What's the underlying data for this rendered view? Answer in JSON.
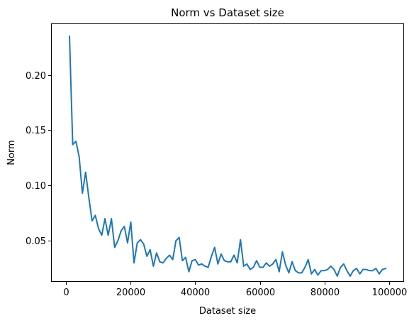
{
  "chart_data": {
    "type": "line",
    "title": "Norm vs Dataset size",
    "xlabel": "Dataset size",
    "ylabel": "Norm",
    "xlim": [
      -4500,
      104500
    ],
    "ylim": [
      0.0135,
      0.246
    ],
    "grid": false,
    "x_ticks": [
      0,
      20000,
      40000,
      60000,
      80000,
      100000
    ],
    "x_tick_labels": [
      "0",
      "20000",
      "40000",
      "60000",
      "80000",
      "100000"
    ],
    "y_ticks": [
      0.05,
      0.1,
      0.15,
      0.2
    ],
    "y_tick_labels": [
      "0.05",
      "0.10",
      "0.15",
      "0.20"
    ],
    "series": [
      {
        "color": "#1f77b4",
        "x": [
          1000,
          2000,
          3000,
          4000,
          5000,
          6000,
          7000,
          8000,
          9000,
          10000,
          11000,
          12000,
          13000,
          14000,
          15000,
          16000,
          17000,
          18000,
          19000,
          20000,
          21000,
          22000,
          23000,
          24000,
          25000,
          26000,
          27000,
          28000,
          29000,
          30000,
          31000,
          32000,
          33000,
          34000,
          35000,
          36000,
          37000,
          38000,
          39000,
          40000,
          41000,
          42000,
          43000,
          44000,
          45000,
          46000,
          47000,
          48000,
          49000,
          50000,
          51000,
          52000,
          53000,
          54000,
          55000,
          56000,
          57000,
          58000,
          59000,
          60000,
          61000,
          62000,
          63000,
          64000,
          65000,
          66000,
          67000,
          68000,
          69000,
          70000,
          71000,
          72000,
          73000,
          74000,
          75000,
          76000,
          77000,
          78000,
          79000,
          80000,
          81000,
          82000,
          83000,
          84000,
          85000,
          86000,
          87000,
          88000,
          89000,
          90000,
          91000,
          92000,
          93000,
          94000,
          95000,
          96000,
          97000,
          98000,
          99000
        ],
        "y": [
          0.235,
          0.137,
          0.14,
          0.126,
          0.093,
          0.112,
          0.089,
          0.068,
          0.073,
          0.061,
          0.055,
          0.07,
          0.055,
          0.07,
          0.044,
          0.05,
          0.059,
          0.063,
          0.048,
          0.067,
          0.03,
          0.048,
          0.051,
          0.047,
          0.036,
          0.042,
          0.027,
          0.039,
          0.031,
          0.03,
          0.034,
          0.037,
          0.033,
          0.05,
          0.053,
          0.032,
          0.035,
          0.022,
          0.032,
          0.033,
          0.028,
          0.029,
          0.027,
          0.026,
          0.036,
          0.044,
          0.029,
          0.038,
          0.032,
          0.031,
          0.031,
          0.037,
          0.03,
          0.051,
          0.027,
          0.029,
          0.024,
          0.026,
          0.032,
          0.026,
          0.026,
          0.03,
          0.027,
          0.029,
          0.033,
          0.022,
          0.04,
          0.028,
          0.021,
          0.031,
          0.023,
          0.021,
          0.021,
          0.026,
          0.033,
          0.02,
          0.024,
          0.019,
          0.023,
          0.023,
          0.024,
          0.027,
          0.024,
          0.018,
          0.026,
          0.029,
          0.023,
          0.018,
          0.023,
          0.025,
          0.02,
          0.024,
          0.024,
          0.023,
          0.023,
          0.025,
          0.02,
          0.024,
          0.025
        ]
      }
    ]
  }
}
